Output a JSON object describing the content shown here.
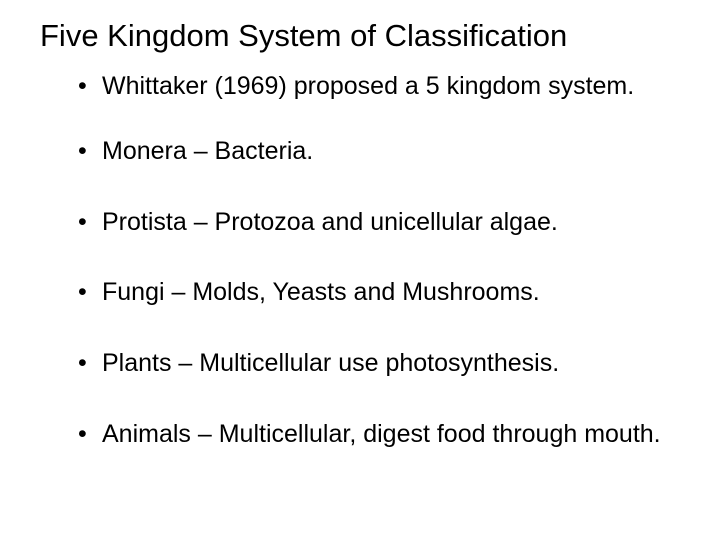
{
  "slide": {
    "title": "Five Kingdom System of Classification",
    "bullets": [
      "Whittaker (1969) proposed a 5 kingdom system.",
      "Monera – Bacteria.",
      "Protista – Protozoa and unicellular algae.",
      "Fungi – Molds, Yeasts and Mushrooms.",
      "Plants – Multicellular use photosynthesis.",
      "Animals – Multicellular, digest food through mouth."
    ],
    "styling": {
      "background_color": "#ffffff",
      "text_color": "#000000",
      "title_fontsize": 31,
      "title_fontweight": 400,
      "bullet_fontsize": 25,
      "bullet_marker": "•",
      "font_family": "Arial",
      "slide_width": 720,
      "slide_height": 540
    }
  }
}
